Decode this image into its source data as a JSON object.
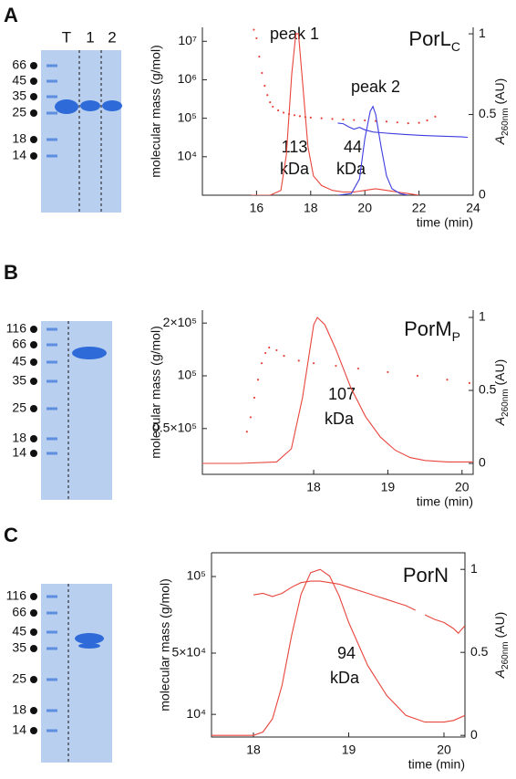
{
  "panels": [
    {
      "label": "A",
      "gel": {
        "lanes": [
          "T",
          "1",
          "2"
        ],
        "markers": [
          66,
          45,
          35,
          25,
          18,
          14
        ]
      }
    },
    {
      "label": "B",
      "gel": {
        "markers": [
          116,
          66,
          45,
          35,
          25,
          18,
          14
        ]
      }
    },
    {
      "label": "C",
      "gel": {
        "markers": [
          116,
          66,
          45,
          35,
          25,
          18,
          14
        ]
      }
    }
  ],
  "chart_data": [
    {
      "type": "line",
      "title": "PorL",
      "title_sub": "C",
      "xlabel": "time (min)",
      "ylabel": "molecular mass (g/mol)",
      "y2label": "A",
      "y2label_sub": "260nm",
      "y2label_unit": " (AU)",
      "ylog": true,
      "xlim": [
        14,
        24
      ],
      "xticks": [
        16,
        18,
        20,
        22,
        24
      ],
      "ylim": [
        1000,
        23000000
      ],
      "yticks": [
        {
          "value": 10000,
          "label": "10⁴"
        },
        {
          "value": 100000,
          "label": "10⁵"
        },
        {
          "value": 1000000,
          "label": "10⁶"
        },
        {
          "value": 10000000,
          "label": "10⁷"
        }
      ],
      "y2lim": [
        0,
        1.04
      ],
      "y2ticks": [
        0,
        0.5,
        1
      ],
      "annotations": [
        "peak 1",
        "peak 2",
        "113",
        "kDa",
        "44",
        "kDa"
      ],
      "series": [
        {
          "color": "#e8453c",
          "axis": "y2",
          "style": "line",
          "x": [
            15.8,
            16.5,
            16.9,
            17.1,
            17.3,
            17.45,
            17.55,
            17.7,
            17.9,
            18.1,
            18.4,
            18.8,
            19.2,
            19.6,
            20,
            20.4,
            20.8,
            21.2,
            21.6,
            22
          ],
          "values": [
            0,
            0,
            0.03,
            0.25,
            0.75,
            1.0,
            1.0,
            0.7,
            0.3,
            0.12,
            0.06,
            0.03,
            0.02,
            0.02,
            0.03,
            0.04,
            0.03,
            0.02,
            0.01,
            0
          ]
        },
        {
          "color": "#e8453c",
          "axis": "y",
          "style": "dots",
          "x": [
            15.9,
            16.0,
            16.1,
            16.2,
            16.3,
            16.4,
            16.5,
            16.6,
            16.8,
            17.0,
            17.2,
            17.4,
            17.6,
            17.8,
            18.0,
            18.4,
            18.8,
            19.2,
            19.6,
            20.0,
            20.4,
            20.8,
            21.2,
            21.6,
            22.0,
            22.3,
            22.6
          ],
          "values": [
            20000000,
            12000000,
            4000000,
            1500000,
            700000,
            400000,
            260000,
            200000,
            160000,
            140000,
            128000,
            120000,
            113000,
            108000,
            104000,
            100000,
            96000,
            93000,
            90000,
            88000,
            85000,
            82000,
            78000,
            74000,
            76000,
            88000,
            110000
          ]
        },
        {
          "color": "#3d3de0",
          "axis": "y2",
          "style": "line",
          "x": [
            19.0,
            19.5,
            19.8,
            20.0,
            20.2,
            20.3,
            20.4,
            20.6,
            20.8,
            21.0,
            21.3,
            21.6
          ],
          "values": [
            0,
            0.01,
            0.1,
            0.35,
            0.52,
            0.55,
            0.5,
            0.3,
            0.12,
            0.04,
            0.01,
            0
          ]
        },
        {
          "color": "#3d3de0",
          "axis": "y",
          "style": "line",
          "x": [
            19.0,
            19.2,
            19.4,
            19.6,
            19.8,
            20.0,
            20.3,
            20.6,
            21.0,
            21.5,
            22.0,
            22.5,
            23.0,
            23.5,
            23.8
          ],
          "values": [
            75000,
            72000,
            60000,
            52000,
            58000,
            50000,
            44000,
            42000,
            40000,
            38000,
            36000,
            35000,
            34000,
            33000,
            32000
          ]
        }
      ]
    },
    {
      "type": "line",
      "title": "PorM",
      "title_sub": "P",
      "xlabel": "time (min)",
      "ylabel": "molecular mass (g/mol)",
      "y2label": "A",
      "y2label_sub": "260nm",
      "y2label_unit": " (AU)",
      "ylog": true,
      "xlim": [
        16.5,
        20.15
      ],
      "xticks": [
        18,
        19,
        20
      ],
      "ylim": [
        27400,
        237000
      ],
      "yticks": [
        {
          "value": 50000,
          "label": "0.5×10⁵"
        },
        {
          "value": 100000,
          "label": "10⁵"
        },
        {
          "value": 200000,
          "label": "2×10⁵"
        }
      ],
      "y2lim": [
        -0.075,
        1.05
      ],
      "y2ticks": [
        0,
        0.5,
        1
      ],
      "annotations": [
        "107",
        "kDa"
      ],
      "series": [
        {
          "color": "#e8453c",
          "axis": "y2",
          "style": "line",
          "x": [
            16.5,
            17.0,
            17.5,
            17.7,
            17.85,
            18.0,
            18.05,
            18.15,
            18.3,
            18.5,
            18.7,
            18.9,
            19.1,
            19.3,
            19.5,
            19.8,
            20.15
          ],
          "values": [
            0,
            0,
            0.01,
            0.1,
            0.45,
            0.95,
            1.0,
            0.95,
            0.78,
            0.52,
            0.32,
            0.18,
            0.09,
            0.04,
            0.02,
            0.01,
            0.01
          ]
        },
        {
          "color": "#e8453c",
          "axis": "y",
          "style": "dots",
          "x": [
            17.1,
            17.15,
            17.2,
            17.25,
            17.3,
            17.35,
            17.4,
            17.5,
            17.6,
            17.8,
            18.0,
            18.3,
            18.6,
            19.0,
            19.4,
            19.8,
            20.1
          ],
          "values": [
            48000,
            58000,
            75000,
            95000,
            118000,
            135000,
            145000,
            140000,
            130000,
            122000,
            118000,
            114000,
            110000,
            105000,
            100000,
            95000,
            91000
          ]
        }
      ]
    },
    {
      "type": "line",
      "title": "PorN",
      "xlabel": "time (min)",
      "ylabel": "molecular mass (g/mol)",
      "y2label": "A",
      "y2label_sub": "260nm",
      "y2label_unit": " (AU)",
      "ylog": false,
      "frame": true,
      "xlim": [
        17.56,
        20.22
      ],
      "xticks": [
        18,
        19,
        20
      ],
      "ylim": [
        -4800,
        115500
      ],
      "yticks": [
        {
          "value": 10000,
          "label": "10⁴"
        },
        {
          "value": 50000,
          "label": "5×10⁴"
        },
        {
          "value": 100000,
          "label": "10⁵"
        }
      ],
      "y2lim": [
        -0.01,
        1.1
      ],
      "y2ticks": [
        0,
        0.5,
        1
      ],
      "annotations": [
        "94",
        "kDa"
      ],
      "series": [
        {
          "color": "#e8453c",
          "axis": "y2",
          "style": "line",
          "x": [
            17.56,
            18.0,
            18.1,
            18.2,
            18.3,
            18.4,
            18.5,
            18.6,
            18.7,
            18.8,
            18.9,
            19.0,
            19.2,
            19.4,
            19.6,
            19.8,
            20.0,
            20.1,
            20.22
          ],
          "values": [
            0,
            0,
            0.02,
            0.1,
            0.3,
            0.6,
            0.85,
            0.98,
            1.0,
            0.96,
            0.84,
            0.68,
            0.42,
            0.24,
            0.12,
            0.08,
            0.08,
            0.09,
            0.12
          ]
        },
        {
          "color": "#e8453c",
          "axis": "y",
          "style": "line",
          "x": [
            18.0,
            18.1,
            18.2,
            18.3,
            18.4,
            18.5,
            18.6,
            18.7,
            18.8,
            18.9,
            19.0,
            19.1,
            19.2,
            19.3,
            19.4,
            19.5,
            19.6,
            19.7,
            19.75,
            19.8,
            19.9,
            20.0,
            20.1,
            20.15,
            20.22
          ],
          "values": [
            88000,
            89000,
            87000,
            89000,
            93000,
            96000,
            97000,
            97000,
            96000,
            95000,
            93000,
            91000,
            89000,
            87000,
            85000,
            83000,
            81000,
            78000,
            null,
            75000,
            72000,
            70000,
            66000,
            63000,
            68000
          ]
        }
      ]
    }
  ]
}
